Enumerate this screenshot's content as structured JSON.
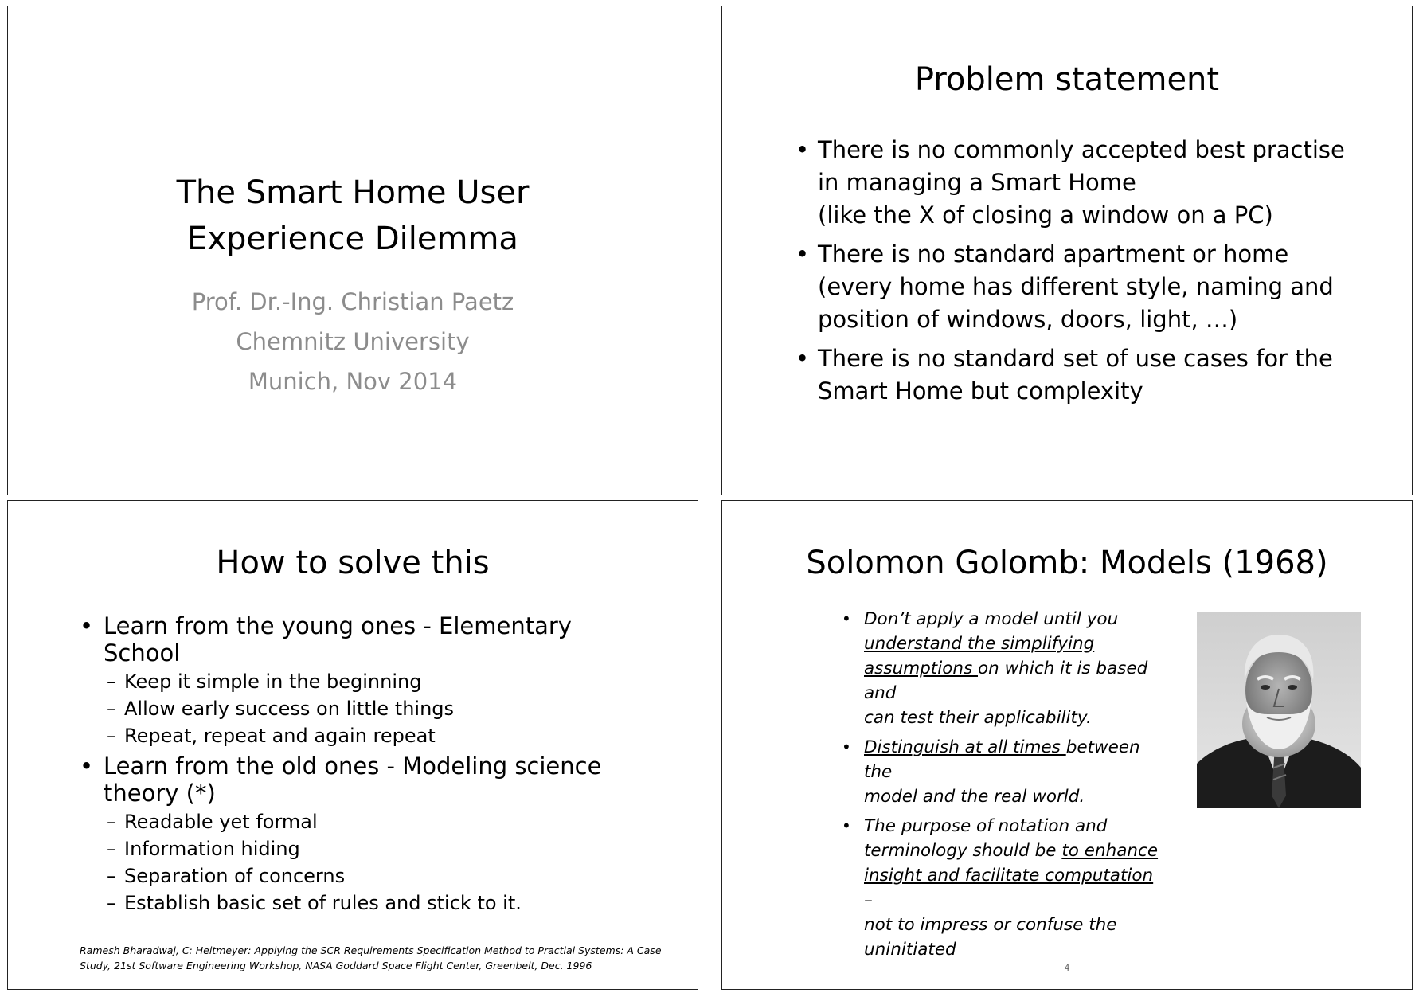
{
  "slide1": {
    "title_line1": "The Smart Home User",
    "title_line2": "Experience Dilemma",
    "author": "Prof. Dr.-Ing. Christian Paetz",
    "affiliation": "Chemnitz University",
    "place_date": "Munich, Nov 2014"
  },
  "slide2": {
    "title": "Problem statement",
    "bullets": [
      [
        "There is no commonly accepted best practise",
        "in managing a Smart Home",
        "(like the X of closing a window on a PC)"
      ],
      [
        "There is no standard apartment or home",
        "(every home has different style, naming and",
        "position of windows, doors, light, …)"
      ],
      [
        "There is no standard set of use cases for the",
        "Smart Home but complexity"
      ]
    ]
  },
  "slide3": {
    "title": "How to solve this",
    "bullet1_line1": "Learn from the young ones - Elementary",
    "bullet1_line2": "School",
    "bullet1_sub": [
      "Keep it simple in the beginning",
      "Allow early success on little things",
      "Repeat, repeat and again repeat"
    ],
    "bullet2_line1": "Learn from the old ones - Modeling science",
    "bullet2_line2": "theory (*)",
    "bullet2_sub": [
      "Readable yet formal",
      "Information hiding",
      "Separation of concerns",
      "Establish basic set of rules and stick to it."
    ],
    "footnote_line1": "Ramesh Bharadwaj, C: Heitmeyer: Applying the SCR Requirements Specification Method to Practial Systems: A Case",
    "footnote_line2": "Study, 21st Software Engineering Workshop, NASA Goddard Space Flight Center, Greenbelt, Dec. 1996"
  },
  "slide4": {
    "title": "Solomon Golomb: Models (1968)",
    "b1_p1": "Don’t apply a model until you",
    "b1_u1": "understand the simplifying",
    "b1_u2": "assumptions ",
    "b1_p2": "on which it is based and",
    "b1_p3": "can test their applicability.",
    "b2_u1": "Distinguish at all times ",
    "b2_p1": "between the",
    "b2_p2": "model and the real world.",
    "b3_p1": "The purpose of notation and",
    "b3_p2": "terminology should be ",
    "b3_u1": "to enhance",
    "b3_u2": "insight and facilitate computation ",
    "b3_p3": "–",
    "b3_p4": "not to impress or confuse the",
    "b3_p5": "uninitiated",
    "page_number": "4"
  }
}
